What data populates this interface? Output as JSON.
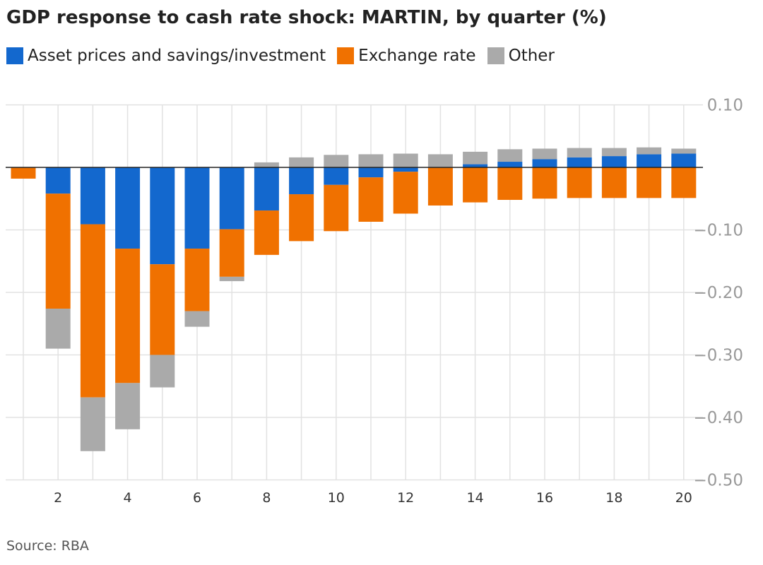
{
  "title": "GDP response to cash rate shock: MARTIN, by quarter (%)",
  "source": "Source: RBA",
  "legend": [
    {
      "name": "Asset prices and savings/investment",
      "color": "#1368CE"
    },
    {
      "name": "Exchange rate",
      "color": "#F07100"
    },
    {
      "name": "Other",
      "color": "#AAAAAA"
    }
  ],
  "chart_data": {
    "type": "bar",
    "stacked": true,
    "categories": [
      1,
      2,
      3,
      4,
      5,
      6,
      7,
      8,
      9,
      10,
      11,
      12,
      13,
      14,
      15,
      16,
      17,
      18,
      19,
      20
    ],
    "x_tick_labels": [
      "2",
      "4",
      "6",
      "8",
      "10",
      "12",
      "14",
      "16",
      "18",
      "20"
    ],
    "y_tick_labels": [
      "0.10",
      "−0.10",
      "−0.20",
      "−0.30",
      "−0.40",
      "−0.50"
    ],
    "ylim": [
      -0.5,
      0.1
    ],
    "y_axis_side": "right",
    "grid": true,
    "legend_position": "top-left",
    "series": [
      {
        "name": "Asset prices and savings/investment",
        "color": "#1368CE",
        "values": [
          0,
          -0.042,
          -0.091,
          -0.13,
          -0.155,
          -0.13,
          -0.099,
          -0.069,
          -0.043,
          -0.028,
          -0.016,
          -0.007,
          0,
          0.005,
          0.009,
          0.013,
          0.016,
          0.018,
          0.021,
          0.022
        ]
      },
      {
        "name": "Exchange rate",
        "color": "#F07100",
        "values": [
          -0.018,
          -0.184,
          -0.277,
          -0.215,
          -0.145,
          -0.1,
          -0.076,
          -0.071,
          -0.075,
          -0.074,
          -0.071,
          -0.067,
          -0.061,
          -0.056,
          -0.052,
          -0.05,
          -0.049,
          -0.049,
          -0.049,
          -0.049
        ]
      },
      {
        "name": "Other",
        "color": "#AAAAAA",
        "values": [
          0,
          -0.064,
          -0.086,
          -0.074,
          -0.052,
          -0.025,
          -0.007,
          0.008,
          0.016,
          0.02,
          0.021,
          0.022,
          0.021,
          0.02,
          0.02,
          0.017,
          0.015,
          0.013,
          0.011,
          0.008
        ]
      }
    ]
  }
}
